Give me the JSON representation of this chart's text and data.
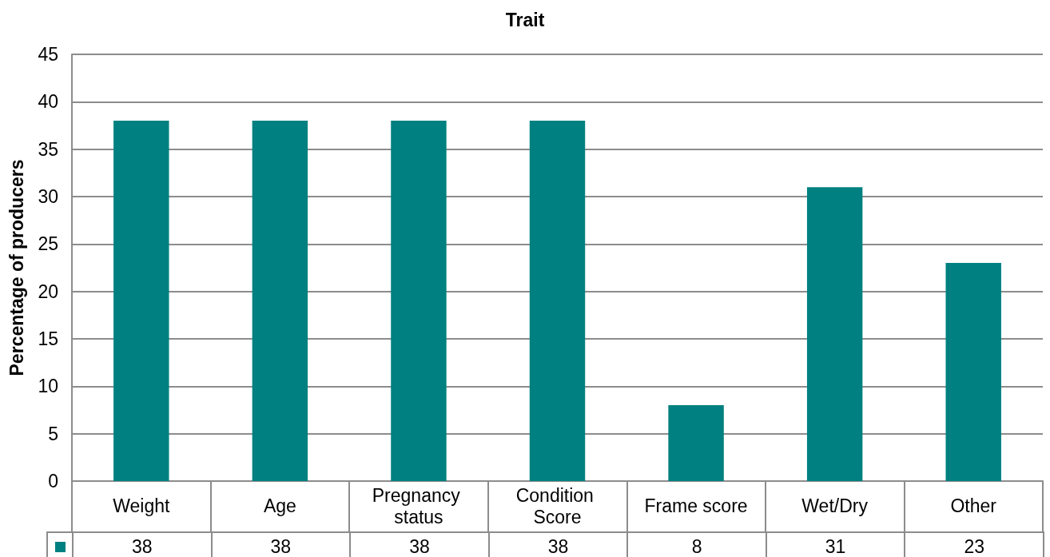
{
  "chart_data": {
    "type": "bar",
    "title": "Trait",
    "ylabel": "Percentage of producers",
    "categories": [
      "Weight",
      "Age",
      "Pregnancy status",
      "Condition Score",
      "Frame score",
      "Wet/Dry",
      "Other"
    ],
    "values": [
      38,
      38,
      38,
      38,
      8,
      31,
      23
    ],
    "color": "#008080",
    "ylim": [
      0,
      45
    ],
    "yticks": [
      0,
      5,
      10,
      15,
      20,
      25,
      30,
      35,
      40,
      45
    ],
    "grid": "y",
    "data_labels": true
  }
}
